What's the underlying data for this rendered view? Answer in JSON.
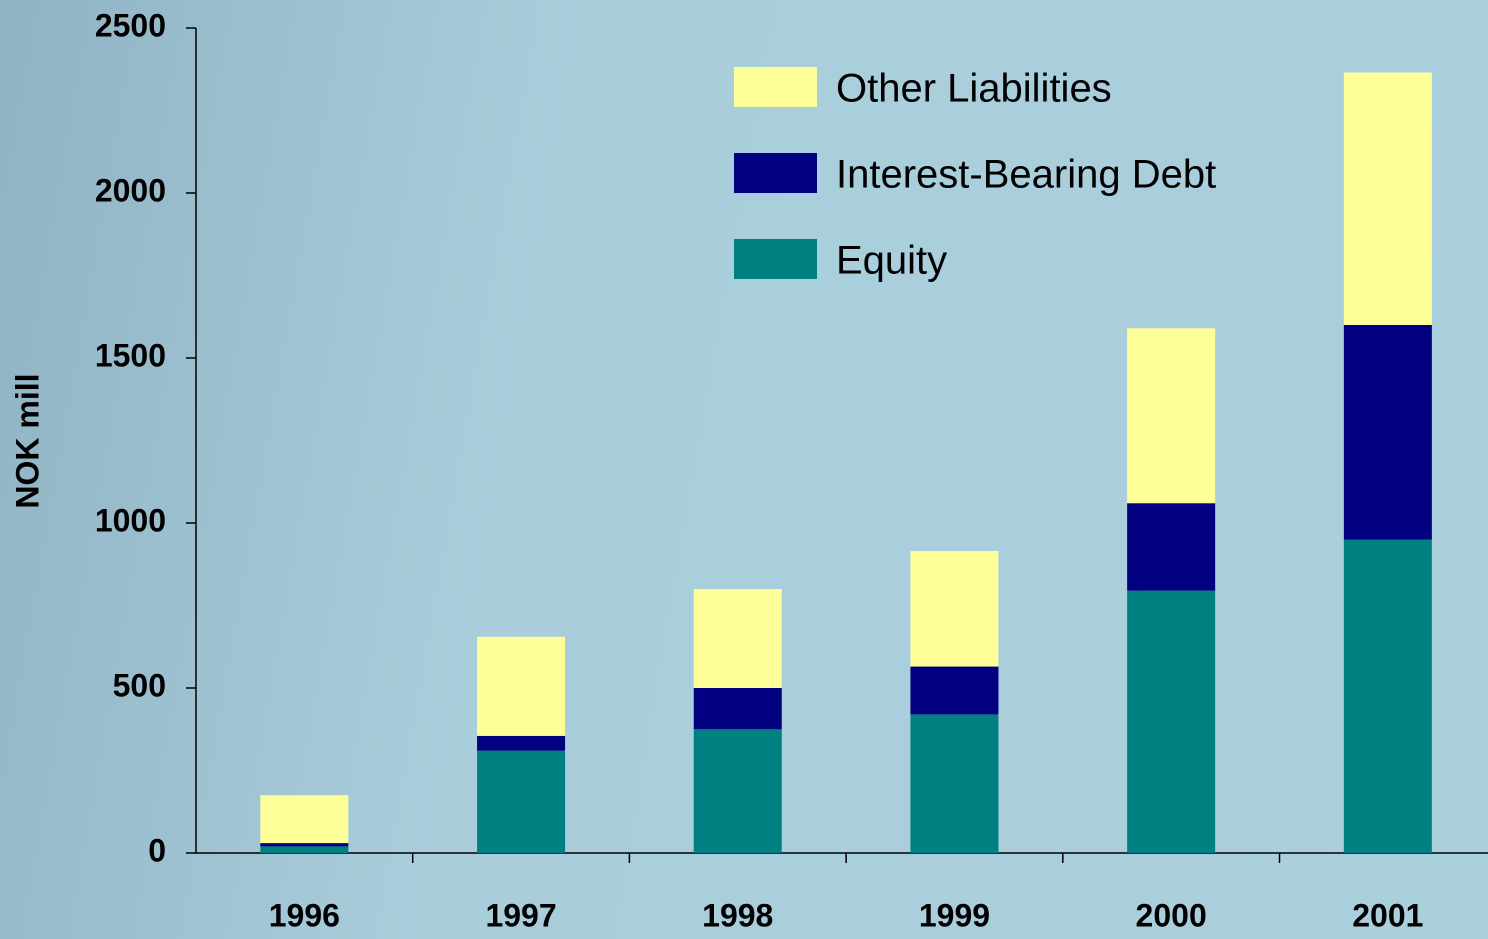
{
  "chart_data": {
    "type": "stacked_bar",
    "y_label": "NOK mill",
    "categories": [
      "1996",
      "1997",
      "1998",
      "1999",
      "2000",
      "2001"
    ],
    "series": [
      {
        "name": "Equity",
        "color": "#008080",
        "values": [
          20,
          310,
          375,
          420,
          795,
          950
        ]
      },
      {
        "name": "Interest-Bearing Debt",
        "color": "#000080",
        "values": [
          10,
          45,
          125,
          145,
          265,
          650
        ]
      },
      {
        "name": "Other Liabilities",
        "color": "#ffff99",
        "values": [
          145,
          300,
          300,
          350,
          530,
          765
        ]
      }
    ],
    "ylim": [
      0,
      2500
    ],
    "yticks": [
      0,
      500,
      1000,
      1500,
      2000,
      2500
    ],
    "grid": false,
    "legend": "top-right"
  }
}
